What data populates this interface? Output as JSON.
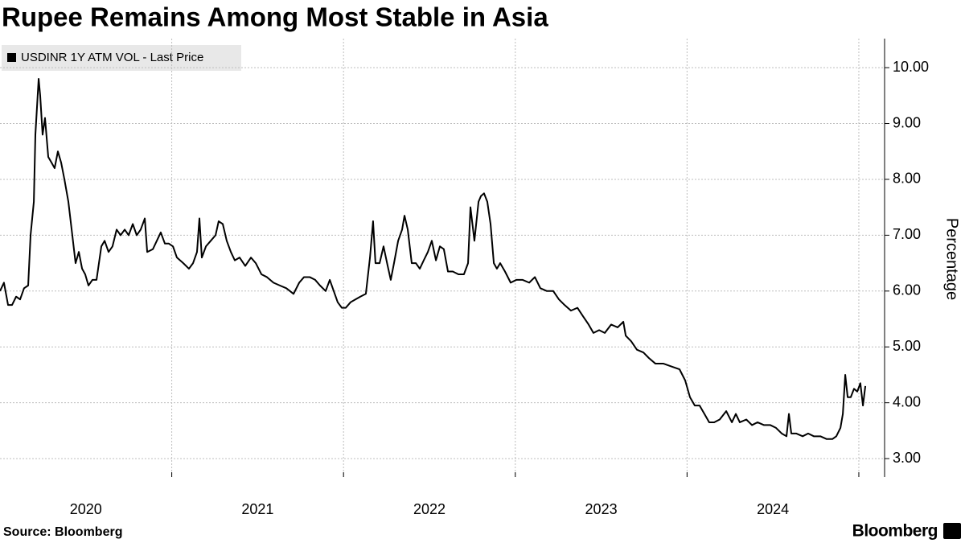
{
  "chart_data": {
    "type": "line",
    "title": "Rupee Remains Among Most Stable in Asia",
    "y_axis_label": "Percentage",
    "source": "Source: Bloomberg",
    "brand": "Bloomberg",
    "x": [
      2020.0,
      2020.023,
      2020.047,
      2020.07,
      2020.094,
      2020.117,
      2020.14,
      2020.164,
      2020.178,
      2020.197,
      2020.206,
      2020.225,
      2020.234,
      2020.248,
      2020.262,
      2020.281,
      2020.3,
      2020.318,
      2020.337,
      2020.356,
      2020.375,
      2020.398,
      2020.421,
      2020.44,
      2020.459,
      2020.478,
      2020.496,
      2020.515,
      2020.538,
      2020.562,
      2020.59,
      2020.609,
      2020.632,
      2020.655,
      2020.679,
      2020.702,
      2020.726,
      2020.749,
      2020.773,
      2020.796,
      2020.819,
      2020.843,
      2020.857,
      2020.89,
      2020.913,
      2020.936,
      2020.96,
      2020.983,
      2021.007,
      2021.03,
      2021.067,
      2021.1,
      2021.124,
      2021.147,
      2021.161,
      2021.175,
      2021.199,
      2021.227,
      2021.255,
      2021.273,
      2021.297,
      2021.32,
      2021.344,
      2021.367,
      2021.395,
      2021.428,
      2021.461,
      2021.489,
      2021.522,
      2021.554,
      2021.592,
      2021.629,
      2021.667,
      2021.709,
      2021.742,
      2021.77,
      2021.803,
      2021.835,
      2021.863,
      2021.896,
      2021.92,
      2021.943,
      2021.966,
      2021.99,
      2022.013,
      2022.041,
      2022.069,
      2022.098,
      2022.13,
      2022.154,
      2022.172,
      2022.186,
      2022.21,
      2022.233,
      2022.257,
      2022.275,
      2022.294,
      2022.318,
      2022.341,
      2022.355,
      2022.374,
      2022.397,
      2022.421,
      2022.444,
      2022.467,
      2022.491,
      2022.514,
      2022.538,
      2022.561,
      2022.584,
      2022.608,
      2022.636,
      2022.669,
      2022.701,
      2022.725,
      2022.739,
      2022.762,
      2022.786,
      2022.8,
      2022.818,
      2022.837,
      2022.856,
      2022.875,
      2022.893,
      2022.912,
      2022.94,
      2022.973,
      2023.006,
      2023.043,
      2023.081,
      2023.114,
      2023.146,
      2023.184,
      2023.221,
      2023.254,
      2023.287,
      2023.324,
      2023.362,
      2023.394,
      2023.427,
      2023.455,
      2023.488,
      2023.521,
      2023.558,
      2023.596,
      2023.629,
      2023.643,
      2023.675,
      2023.708,
      2023.746,
      2023.778,
      2023.816,
      2023.863,
      2023.909,
      2023.956,
      2023.989,
      2024.017,
      2024.045,
      2024.073,
      2024.101,
      2024.129,
      2024.158,
      2024.19,
      2024.228,
      2024.261,
      2024.284,
      2024.307,
      2024.345,
      2024.378,
      2024.41,
      2024.448,
      2024.485,
      2024.518,
      2024.551,
      2024.579,
      2024.593,
      2024.607,
      2024.635,
      2024.673,
      2024.705,
      2024.738,
      2024.776,
      2024.813,
      2024.846,
      2024.869,
      2024.893,
      2024.907,
      2024.921,
      2024.935,
      2024.953,
      2024.972,
      2024.991,
      2025.009,
      2025.024,
      2025.038
    ],
    "series": [
      {
        "name": "USDINR 1Y ATM VOL - Last Price",
        "color": "#000000",
        "values": [
          6.0,
          6.15,
          5.75,
          5.75,
          5.9,
          5.85,
          6.05,
          6.1,
          7.0,
          7.6,
          8.8,
          9.8,
          9.5,
          8.8,
          9.1,
          8.4,
          8.3,
          8.2,
          8.5,
          8.3,
          8.0,
          7.6,
          7.0,
          6.5,
          6.7,
          6.4,
          6.3,
          6.1,
          6.2,
          6.2,
          6.8,
          6.9,
          6.7,
          6.8,
          7.1,
          7.0,
          7.1,
          7.0,
          7.2,
          7.0,
          7.1,
          7.3,
          6.7,
          6.75,
          6.9,
          7.05,
          6.85,
          6.85,
          6.8,
          6.6,
          6.5,
          6.4,
          6.5,
          6.7,
          7.3,
          6.6,
          6.8,
          6.9,
          7.0,
          7.25,
          7.2,
          6.9,
          6.7,
          6.55,
          6.6,
          6.45,
          6.6,
          6.5,
          6.3,
          6.25,
          6.15,
          6.1,
          6.05,
          5.95,
          6.15,
          6.25,
          6.25,
          6.2,
          6.1,
          6.0,
          6.2,
          6.0,
          5.8,
          5.7,
          5.7,
          5.8,
          5.85,
          5.9,
          5.95,
          6.6,
          7.25,
          6.5,
          6.5,
          6.8,
          6.45,
          6.2,
          6.5,
          6.9,
          7.1,
          7.35,
          7.1,
          6.5,
          6.5,
          6.4,
          6.55,
          6.7,
          6.9,
          6.55,
          6.8,
          6.75,
          6.35,
          6.35,
          6.3,
          6.3,
          6.5,
          7.5,
          6.9,
          7.6,
          7.7,
          7.75,
          7.6,
          7.2,
          6.5,
          6.4,
          6.5,
          6.35,
          6.15,
          6.2,
          6.2,
          6.15,
          6.25,
          6.05,
          6.0,
          6.0,
          5.85,
          5.75,
          5.65,
          5.7,
          5.55,
          5.4,
          5.25,
          5.3,
          5.25,
          5.4,
          5.35,
          5.45,
          5.2,
          5.1,
          4.95,
          4.9,
          4.8,
          4.7,
          4.7,
          4.65,
          4.6,
          4.4,
          4.1,
          3.95,
          3.95,
          3.8,
          3.65,
          3.65,
          3.7,
          3.85,
          3.65,
          3.8,
          3.65,
          3.7,
          3.6,
          3.65,
          3.6,
          3.6,
          3.55,
          3.45,
          3.4,
          3.8,
          3.45,
          3.45,
          3.4,
          3.45,
          3.4,
          3.4,
          3.35,
          3.35,
          3.4,
          3.55,
          3.8,
          4.5,
          4.1,
          4.1,
          4.25,
          4.2,
          4.35,
          3.95,
          4.3
        ]
      }
    ],
    "xlim": [
      2020.0,
      2025.15
    ],
    "xticks": [
      {
        "value": 2020.5,
        "label": "2020"
      },
      {
        "value": 2021.5,
        "label": "2021"
      },
      {
        "value": 2022.5,
        "label": "2022"
      },
      {
        "value": 2023.5,
        "label": "2023"
      },
      {
        "value": 2024.5,
        "label": "2024"
      }
    ],
    "xgrid": [
      2021,
      2022,
      2023,
      2024,
      2025
    ],
    "ylim": [
      2.67,
      10.52
    ],
    "yticks": [
      {
        "value": 3,
        "label": "3.00"
      },
      {
        "value": 4,
        "label": "4.00"
      },
      {
        "value": 5,
        "label": "5.00"
      },
      {
        "value": 6,
        "label": "6.00"
      },
      {
        "value": 7,
        "label": "7.00"
      },
      {
        "value": 8,
        "label": "8.00"
      },
      {
        "value": 9,
        "label": "9.00"
      },
      {
        "value": 10,
        "label": "10.00"
      }
    ],
    "grid": true
  }
}
